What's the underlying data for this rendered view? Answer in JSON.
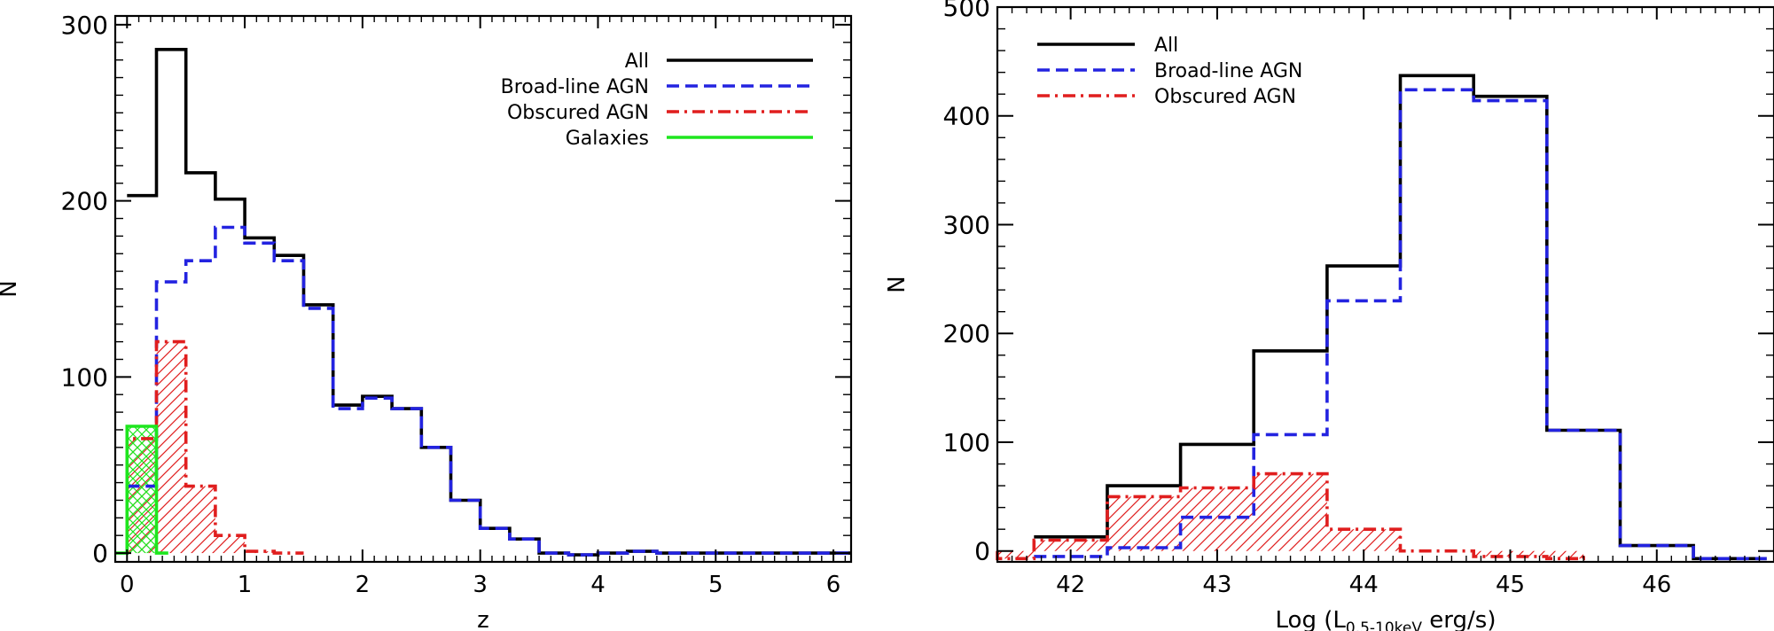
{
  "chart_data": [
    {
      "type": "histogram",
      "title": "",
      "xlabel": "z",
      "ylabel": "N",
      "xlim": [
        -0.1,
        6.15
      ],
      "ylim": [
        -5,
        305
      ],
      "xticks": [
        0,
        1,
        2,
        3,
        4,
        5,
        6
      ],
      "yticks": [
        0,
        100,
        200,
        300
      ],
      "legend_position": "top-right",
      "series": [
        {
          "name": "All",
          "color": "#000000",
          "style": "solid",
          "fill": "none",
          "edges": [
            0,
            0.25,
            0.5,
            0.75,
            1.0,
            1.25,
            1.5,
            1.75,
            2.0,
            2.25,
            2.5,
            2.75,
            3.0,
            3.25,
            3.5,
            3.75,
            4.0,
            4.25,
            4.5,
            4.75,
            5.0,
            5.25,
            5.5,
            5.75,
            6.0,
            6.15
          ],
          "values": [
            203,
            286,
            216,
            201,
            179,
            169,
            141,
            84,
            89,
            82,
            60,
            30,
            14,
            8,
            0,
            -1,
            0,
            1,
            0,
            0,
            0,
            0,
            0,
            0,
            0
          ]
        },
        {
          "name": "Broad-line AGN",
          "color": "#2323e0",
          "style": "dashed",
          "fill": "none",
          "edges": [
            0.0,
            0.25,
            0.5,
            0.75,
            1.0,
            1.25,
            1.5,
            1.75,
            2.0,
            2.25,
            2.5,
            2.75,
            3.0,
            3.25,
            3.5,
            3.75,
            4.0,
            4.25,
            4.5,
            4.75,
            5.0,
            5.25,
            5.5,
            5.75,
            6.0,
            6.15
          ],
          "values": [
            38,
            154,
            166,
            185,
            176,
            166,
            139,
            82,
            88,
            82,
            60,
            30,
            14,
            8,
            0,
            -1,
            0,
            1,
            0,
            0,
            0,
            0,
            0,
            0,
            0
          ]
        },
        {
          "name": "Obscured AGN",
          "color": "#e01e1e",
          "style": "dashdot",
          "fill": "hatch",
          "edges": [
            0.0,
            0.25,
            0.5,
            0.75,
            1.0,
            1.25,
            1.5
          ],
          "values": [
            65,
            120,
            38,
            10,
            1,
            0
          ]
        },
        {
          "name": "Galaxies",
          "color": "#1ee61e",
          "style": "solid",
          "fill": "crosshatch",
          "edges": [
            -0.1,
            0.0,
            0.25,
            0.35
          ],
          "values": [
            0,
            72,
            0
          ]
        }
      ]
    },
    {
      "type": "histogram",
      "title": "",
      "xlabel_prefix": "Log (L",
      "xlabel_sub": "0.5-10keV",
      "xlabel_suffix": " erg/s)",
      "ylabel": "N",
      "xlim": [
        41.5,
        46.8
      ],
      "ylim": [
        -10,
        500
      ],
      "xticks": [
        42,
        43,
        44,
        45,
        46
      ],
      "yticks": [
        0,
        100,
        200,
        300,
        400,
        500
      ],
      "legend_position": "top-left",
      "series": [
        {
          "name": "All",
          "color": "#000000",
          "style": "solid",
          "fill": "none",
          "edges": [
            41.75,
            42.25,
            42.75,
            43.25,
            43.75,
            44.25,
            44.75,
            45.25,
            45.75,
            46.25,
            46.75
          ],
          "values": [
            13,
            60,
            98,
            184,
            262,
            437,
            418,
            111,
            5,
            -7
          ]
        },
        {
          "name": "Broad-line AGN",
          "color": "#2323e0",
          "style": "dashed",
          "fill": "none",
          "edges": [
            41.75,
            42.25,
            42.75,
            43.25,
            43.75,
            44.25,
            44.75,
            45.25,
            45.75,
            46.25,
            46.75
          ],
          "values": [
            -5,
            3,
            31,
            107,
            230,
            424,
            414,
            111,
            5,
            -7
          ]
        },
        {
          "name": "Obscured AGN",
          "color": "#e01e1e",
          "style": "dashdot",
          "fill": "hatch",
          "edges": [
            41.5,
            41.75,
            42.25,
            42.75,
            43.25,
            43.75,
            44.25,
            44.75,
            45.25,
            45.5
          ],
          "values": [
            -7,
            10,
            50,
            58,
            71,
            20,
            0,
            -5,
            -7
          ]
        }
      ]
    }
  ]
}
